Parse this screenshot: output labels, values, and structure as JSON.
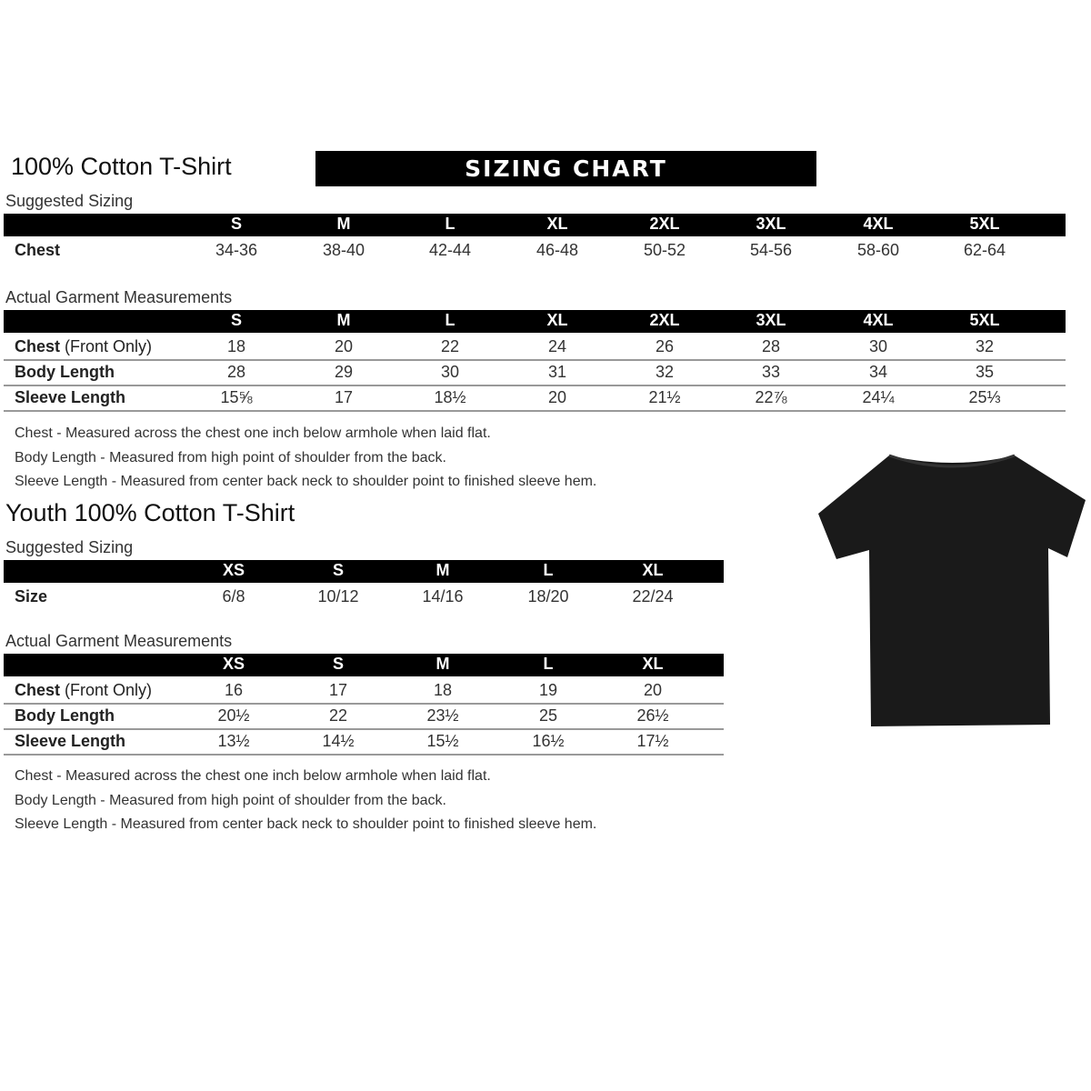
{
  "adult": {
    "title": "100% Cotton T-Shirt",
    "banner": "SIZING CHART",
    "suggested": {
      "label": "Suggested Sizing",
      "sizes": [
        "S",
        "M",
        "L",
        "XL",
        "2XL",
        "3XL",
        "4XL",
        "5XL"
      ],
      "rows": [
        {
          "label": "Chest",
          "values": [
            "34-36",
            "38-40",
            "42-44",
            "46-48",
            "50-52",
            "54-56",
            "58-60",
            "62-64"
          ]
        }
      ]
    },
    "actual": {
      "label": "Actual Garment Measurements",
      "sizes": [
        "S",
        "M",
        "L",
        "XL",
        "2XL",
        "3XL",
        "4XL",
        "5XL"
      ],
      "rows": [
        {
          "label": "Chest",
          "suffix": " (Front Only)",
          "values": [
            "18",
            "20",
            "22",
            "24",
            "26",
            "28",
            "30",
            "32"
          ]
        },
        {
          "label": "Body Length",
          "values": [
            "28",
            "29",
            "30",
            "31",
            "32",
            "33",
            "34",
            "35"
          ]
        },
        {
          "label": "Sleeve Length",
          "values": [
            "15⅝",
            "17",
            "18½",
            "20",
            "21½",
            "22⅞",
            "24¼",
            "25⅓"
          ]
        }
      ]
    },
    "notes": [
      "Chest - Measured across the chest one inch below armhole when laid flat.",
      "Body Length - Measured from high point of shoulder from the back.",
      "Sleeve Length - Measured from center back neck to shoulder point to finished sleeve hem."
    ]
  },
  "youth": {
    "title": "Youth 100% Cotton T-Shirt",
    "suggested": {
      "label": "Suggested Sizing",
      "sizes": [
        "XS",
        "S",
        "M",
        "L",
        "XL"
      ],
      "rows": [
        {
          "label": "Size",
          "values": [
            "6/8",
            "10/12",
            "14/16",
            "18/20",
            "22/24"
          ]
        }
      ]
    },
    "actual": {
      "label": "Actual Garment Measurements",
      "sizes": [
        "XS",
        "S",
        "M",
        "L",
        "XL"
      ],
      "rows": [
        {
          "label": "Chest",
          "suffix": " (Front Only)",
          "values": [
            "16",
            "17",
            "18",
            "19",
            "20"
          ]
        },
        {
          "label": "Body Length",
          "values": [
            "20½",
            "22",
            "23½",
            "25",
            "26½"
          ]
        },
        {
          "label": "Sleeve Length",
          "values": [
            "13½",
            "14½",
            "15½",
            "16½",
            "17½"
          ]
        }
      ]
    },
    "notes": [
      "Chest - Measured across the chest one inch below armhole when laid flat.",
      "Body Length - Measured from high point of shoulder from the back.",
      "Sleeve Length - Measured from center back neck to shoulder point to finished sleeve hem."
    ]
  },
  "colors": {
    "bar": "#000000",
    "shirt": "#1a1a1a"
  }
}
